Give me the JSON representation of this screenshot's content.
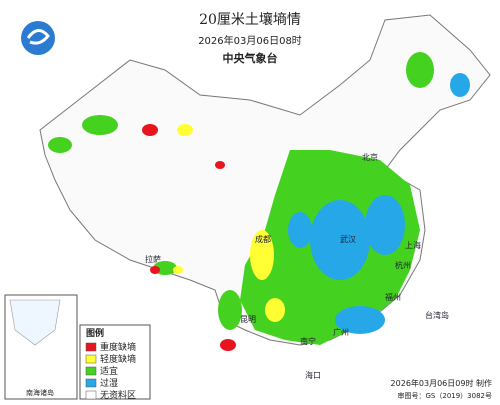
{
  "header": {
    "title": "20厘米土壤墒情",
    "subtitle": "2026年03月06日08时",
    "publisher": "中央气象台"
  },
  "legend": {
    "title": "图例",
    "items": [
      {
        "label": "重度缺墒",
        "color": "#e8141e"
      },
      {
        "label": "轻度缺墒",
        "color": "#ffff33"
      },
      {
        "label": "适宜",
        "color": "#44d11f"
      },
      {
        "label": "过湿",
        "color": "#26a8e8"
      },
      {
        "label": "无资料区",
        "color": "#ffffff"
      }
    ]
  },
  "inset": {
    "label": "南海诸岛"
  },
  "places": [
    "北京",
    "上海",
    "广州",
    "南宁",
    "昆明",
    "拉萨",
    "成都",
    "武汉",
    "杭州",
    "福州",
    "台湾岛",
    "海口"
  ],
  "footer": {
    "made": "2026年03月06日09时 制作",
    "approval": "审图号：GS（2019）3082号"
  }
}
